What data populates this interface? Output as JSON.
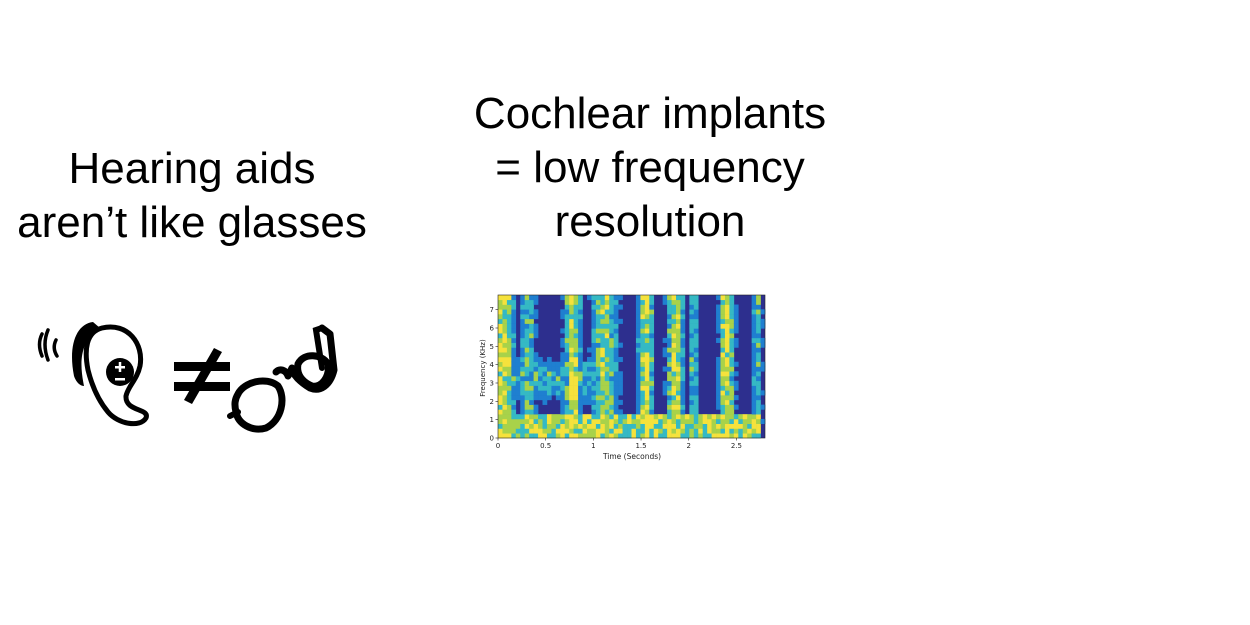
{
  "left_title": {
    "line1": "Hearing aids",
    "line2": "aren’t like glasses"
  },
  "right_title": {
    "line1": "Cochlear implants",
    "line2": "= low frequency",
    "line3": "resolution"
  },
  "icons": {
    "ear": "hearing-aid-ear-icon",
    "not_equal": "not-equal-icon",
    "glasses": "glasses-icon"
  },
  "chart_data": {
    "type": "heatmap",
    "xlabel": "Time (Seconds)",
    "ylabel": "Frequency (KHz)",
    "xlim": [
      0,
      2.8
    ],
    "ylim": [
      0,
      7.8
    ],
    "x_ticks": [
      "0",
      "0.5",
      "1",
      "1.5",
      "2",
      "2.5"
    ],
    "y_ticks": [
      "0",
      "1",
      "2",
      "3",
      "4",
      "5",
      "6",
      "7"
    ],
    "colormap": [
      "#2d2f8e",
      "#1f7fd0",
      "#35b9c4",
      "#a8d24a",
      "#f5e23c"
    ]
  }
}
